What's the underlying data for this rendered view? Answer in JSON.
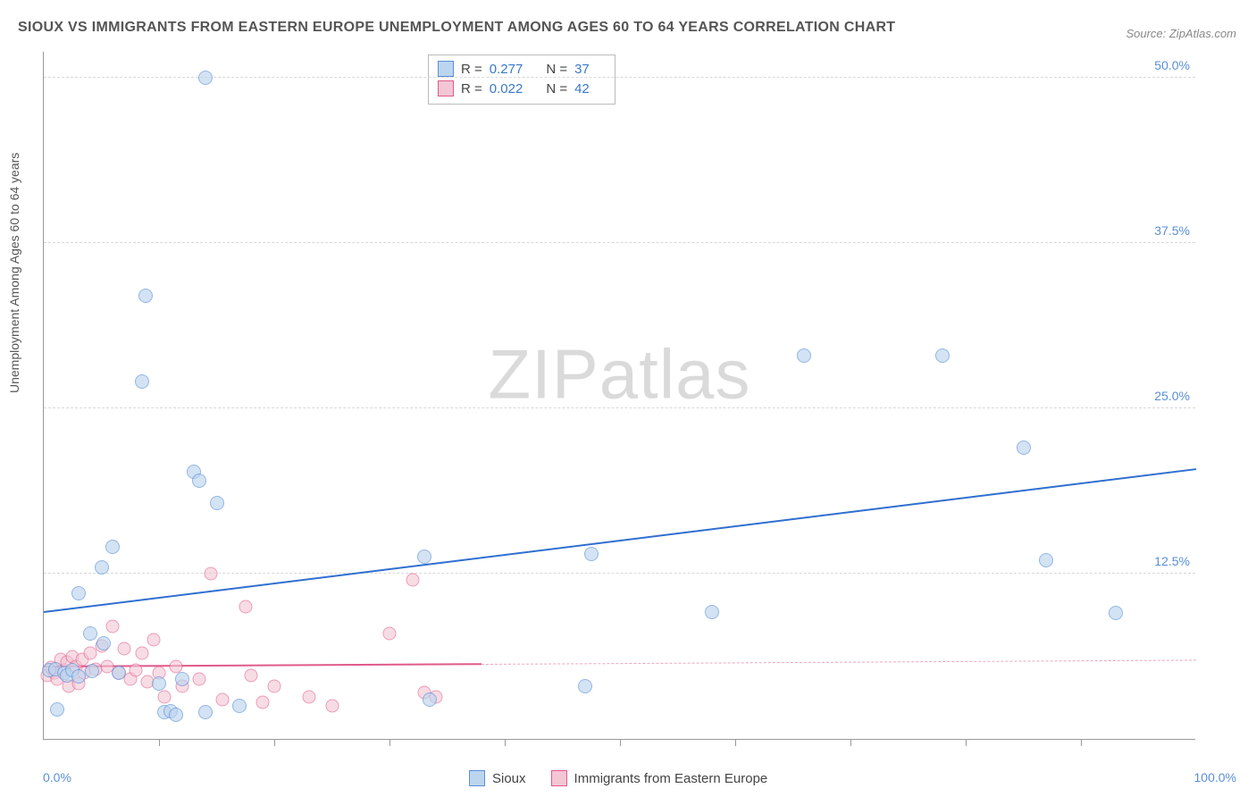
{
  "title": "SIOUX VS IMMIGRANTS FROM EASTERN EUROPE UNEMPLOYMENT AMONG AGES 60 TO 64 YEARS CORRELATION CHART",
  "source": "Source: ZipAtlas.com",
  "ylabel": "Unemployment Among Ages 60 to 64 years",
  "watermark_a": "ZIP",
  "watermark_b": "atlas",
  "xlim": [
    0,
    100
  ],
  "ylim": [
    0,
    52
  ],
  "yticks": [
    {
      "v": 12.5,
      "label": "12.5%"
    },
    {
      "v": 25.0,
      "label": "25.0%"
    },
    {
      "v": 37.5,
      "label": "37.5%"
    },
    {
      "v": 50.0,
      "label": "50.0%"
    }
  ],
  "xticks_minor": [
    10,
    20,
    30,
    40,
    50,
    60,
    70,
    80,
    90
  ],
  "xlabel_min": "0.0%",
  "xlabel_max": "100.0%",
  "grid_color": "#d8d8d8",
  "axis_color": "#999999",
  "series": {
    "sioux": {
      "label": "Sioux",
      "fill": "#bcd5ef",
      "stroke": "#5a8fd6",
      "fill_opacity": 0.65,
      "marker_size": 16,
      "R_label": "R =",
      "R": "0.277",
      "N_label": "N =",
      "N": "37",
      "trend": {
        "x1": 0,
        "y1": 9.5,
        "x2": 100,
        "y2": 20.3,
        "color": "#2f6fd0",
        "width": 2.4,
        "dash": "solid",
        "extent": 1.0
      },
      "points": [
        [
          0.5,
          5.2
        ],
        [
          1.0,
          5.3
        ],
        [
          1.2,
          2.2
        ],
        [
          1.8,
          5.0
        ],
        [
          2.0,
          4.8
        ],
        [
          2.5,
          5.2
        ],
        [
          3.0,
          4.7
        ],
        [
          3.0,
          11.0
        ],
        [
          4.0,
          8.0
        ],
        [
          4.2,
          5.1
        ],
        [
          5.0,
          13.0
        ],
        [
          5.2,
          7.2
        ],
        [
          6.0,
          14.5
        ],
        [
          6.5,
          5.0
        ],
        [
          8.5,
          27.0
        ],
        [
          8.8,
          33.5
        ],
        [
          10.0,
          4.2
        ],
        [
          10.5,
          2.0
        ],
        [
          11.0,
          2.1
        ],
        [
          11.5,
          1.8
        ],
        [
          12.0,
          4.5
        ],
        [
          13.0,
          20.2
        ],
        [
          13.5,
          19.5
        ],
        [
          14.0,
          50.0
        ],
        [
          14.0,
          2.0
        ],
        [
          15.0,
          17.8
        ],
        [
          17.0,
          2.5
        ],
        [
          33.0,
          13.8
        ],
        [
          33.5,
          3.0
        ],
        [
          47.0,
          4.0
        ],
        [
          47.5,
          14.0
        ],
        [
          58.0,
          9.6
        ],
        [
          66.0,
          29.0
        ],
        [
          78.0,
          29.0
        ],
        [
          85.0,
          22.0
        ],
        [
          87.0,
          13.5
        ],
        [
          93.0,
          9.5
        ]
      ]
    },
    "immigrants": {
      "label": "Immigrants from Eastern Europe",
      "fill": "#f3c6d3",
      "stroke": "#e05a8a",
      "fill_opacity": 0.6,
      "marker_size": 15,
      "R_label": "R =",
      "R": "0.022",
      "N_label": "N =",
      "N": "42",
      "trend": {
        "x1": 0,
        "y1": 5.4,
        "x2": 100,
        "y2": 5.9,
        "color": "#e05a8a",
        "width": 2.2,
        "dash": "solid",
        "extent": 0.38,
        "dash_after": true
      },
      "points": [
        [
          0.3,
          4.8
        ],
        [
          0.6,
          5.4
        ],
        [
          0.9,
          5.0
        ],
        [
          1.2,
          4.5
        ],
        [
          1.5,
          6.0
        ],
        [
          1.8,
          5.2
        ],
        [
          2.0,
          5.8
        ],
        [
          2.2,
          4.0
        ],
        [
          2.5,
          6.2
        ],
        [
          2.8,
          5.5
        ],
        [
          3.0,
          4.2
        ],
        [
          3.3,
          6.0
        ],
        [
          3.5,
          5.0
        ],
        [
          4.0,
          6.5
        ],
        [
          4.5,
          5.3
        ],
        [
          5.0,
          7.0
        ],
        [
          5.5,
          5.5
        ],
        [
          6.0,
          8.5
        ],
        [
          6.5,
          5.0
        ],
        [
          7.0,
          6.8
        ],
        [
          7.5,
          4.5
        ],
        [
          8.0,
          5.2
        ],
        [
          8.5,
          6.5
        ],
        [
          9.0,
          4.3
        ],
        [
          9.5,
          7.5
        ],
        [
          10.0,
          5.0
        ],
        [
          10.5,
          3.2
        ],
        [
          11.5,
          5.5
        ],
        [
          12.0,
          4.0
        ],
        [
          13.5,
          4.5
        ],
        [
          14.5,
          12.5
        ],
        [
          15.5,
          3.0
        ],
        [
          17.5,
          10.0
        ],
        [
          18.0,
          4.8
        ],
        [
          19.0,
          2.8
        ],
        [
          20.0,
          4.0
        ],
        [
          23.0,
          3.2
        ],
        [
          25.0,
          2.5
        ],
        [
          30.0,
          8.0
        ],
        [
          32.0,
          12.0
        ],
        [
          33.0,
          3.5
        ],
        [
          34.0,
          3.2
        ]
      ]
    }
  }
}
